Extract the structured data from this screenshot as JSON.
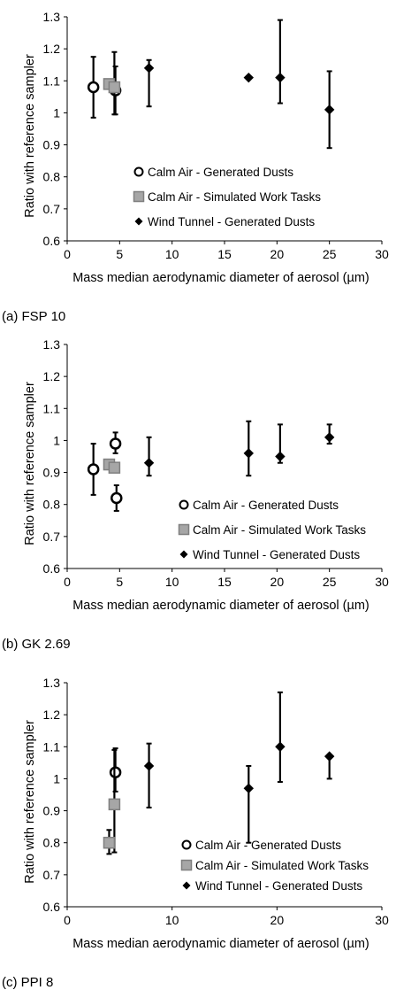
{
  "chart_data": [
    {
      "type": "scatter",
      "panel_label": "(a)  FSP 10",
      "xlabel": "Mass median aerodynamic diameter of aerosol (µm)",
      "ylabel": "Ratio with reference sampler",
      "xlim": [
        0,
        30
      ],
      "ylim": [
        0.6,
        1.3
      ],
      "xticks": [
        "0",
        "5",
        "10",
        "15",
        "20",
        "25",
        "30"
      ],
      "yticks": [
        "0.6",
        "0.7",
        "0.8",
        "0.9",
        "1",
        "1.1",
        "1.2",
        "1.3"
      ],
      "grid": false,
      "legend": "inside-lower-center",
      "series": [
        {
          "name": "Calm Air - Generated Dusts",
          "marker": "circle",
          "points": [
            {
              "x": 2.5,
              "y": 1.08,
              "lo": 0.985,
              "hi": 1.175
            },
            {
              "x": 4.6,
              "y": 1.07,
              "lo": 0.995,
              "hi": 1.145
            }
          ]
        },
        {
          "name": "Calm Air - Simulated Work Tasks",
          "marker": "square",
          "points": [
            {
              "x": 4.0,
              "y": 1.09
            },
            {
              "x": 4.5,
              "y": 1.08,
              "lo": 0.995,
              "hi": 1.19
            }
          ]
        },
        {
          "name": "Wind Tunnel - Generated Dusts",
          "marker": "diamond",
          "points": [
            {
              "x": 7.8,
              "y": 1.14,
              "lo": 1.02,
              "hi": 1.165
            },
            {
              "x": 17.3,
              "y": 1.11
            },
            {
              "x": 20.3,
              "y": 1.11,
              "lo": 1.03,
              "hi": 1.29
            },
            {
              "x": 25.0,
              "y": 1.01,
              "lo": 0.89,
              "hi": 1.13
            }
          ]
        }
      ]
    },
    {
      "type": "scatter",
      "panel_label": "(b)  GK 2.69",
      "xlabel": "Mass median aerodynamic diameter of aerosol (µm)",
      "ylabel": "Ratio with reference sampler",
      "xlim": [
        0,
        30
      ],
      "ylim": [
        0.6,
        1.3
      ],
      "xticks": [
        "0",
        "5",
        "10",
        "15",
        "20",
        "25",
        "30"
      ],
      "yticks": [
        "0.6",
        "0.7",
        "0.8",
        "0.9",
        "1",
        "1.1",
        "1.2",
        "1.3"
      ],
      "grid": false,
      "legend": "inside-lower-center",
      "series": [
        {
          "name": "Calm Air - Generated Dusts",
          "marker": "circle",
          "points": [
            {
              "x": 2.5,
              "y": 0.91,
              "lo": 0.83,
              "hi": 0.99
            },
            {
              "x": 4.6,
              "y": 0.99,
              "lo": 0.96,
              "hi": 1.025
            },
            {
              "x": 4.7,
              "y": 0.82,
              "lo": 0.78,
              "hi": 0.86
            }
          ]
        },
        {
          "name": "Calm Air - Simulated Work Tasks",
          "marker": "square",
          "points": [
            {
              "x": 4.0,
              "y": 0.925
            },
            {
              "x": 4.5,
              "y": 0.915
            }
          ]
        },
        {
          "name": "Wind Tunnel - Generated Dusts",
          "marker": "diamond",
          "points": [
            {
              "x": 7.8,
              "y": 0.93,
              "lo": 0.89,
              "hi": 1.01
            },
            {
              "x": 17.3,
              "y": 0.96,
              "lo": 0.89,
              "hi": 1.06
            },
            {
              "x": 20.3,
              "y": 0.95,
              "lo": 0.93,
              "hi": 1.05
            },
            {
              "x": 25.0,
              "y": 1.01,
              "lo": 0.99,
              "hi": 1.05
            }
          ]
        }
      ]
    },
    {
      "type": "scatter",
      "panel_label": "(c)  PPI 8",
      "xlabel": "Mass median aerodynamic diameter of aerosol (µm)",
      "ylabel": "Ratio with reference sampler",
      "xlim": [
        0,
        30
      ],
      "ylim": [
        0.6,
        1.3
      ],
      "xticks": [
        "0",
        "10",
        "20",
        "30"
      ],
      "yticks": [
        "0.6",
        "0.7",
        "0.8",
        "0.9",
        "1",
        "1.1",
        "1.2",
        "1.3"
      ],
      "grid": false,
      "legend": "inside-lower-center",
      "series": [
        {
          "name": "Calm Air - Generated Dusts",
          "marker": "circle",
          "points": [
            {
              "x": 4.6,
              "y": 1.02,
              "lo": 0.96,
              "hi": 1.095
            }
          ]
        },
        {
          "name": "Calm Air - Simulated Work Tasks",
          "marker": "square",
          "points": [
            {
              "x": 4.0,
              "y": 0.8,
              "lo": 0.765,
              "hi": 0.84
            },
            {
              "x": 4.5,
              "y": 0.92,
              "lo": 0.77,
              "hi": 1.09
            }
          ]
        },
        {
          "name": "Wind Tunnel - Generated Dusts",
          "marker": "diamond",
          "points": [
            {
              "x": 7.8,
              "y": 1.04,
              "lo": 0.91,
              "hi": 1.11
            },
            {
              "x": 17.3,
              "y": 0.97,
              "lo": 0.8,
              "hi": 1.04
            },
            {
              "x": 20.3,
              "y": 1.1,
              "lo": 0.99,
              "hi": 1.27
            },
            {
              "x": 25.0,
              "y": 1.07,
              "lo": 1.0,
              "hi": 1.07
            }
          ]
        }
      ]
    }
  ],
  "colors": {
    "marker_stroke": "#000000",
    "circle_fill": "#ffffff",
    "square_fill": "#a6a6a6",
    "square_stroke": "#7f7f7f",
    "diamond_fill": "#000000",
    "axis": "#000000",
    "text": "#000000"
  }
}
